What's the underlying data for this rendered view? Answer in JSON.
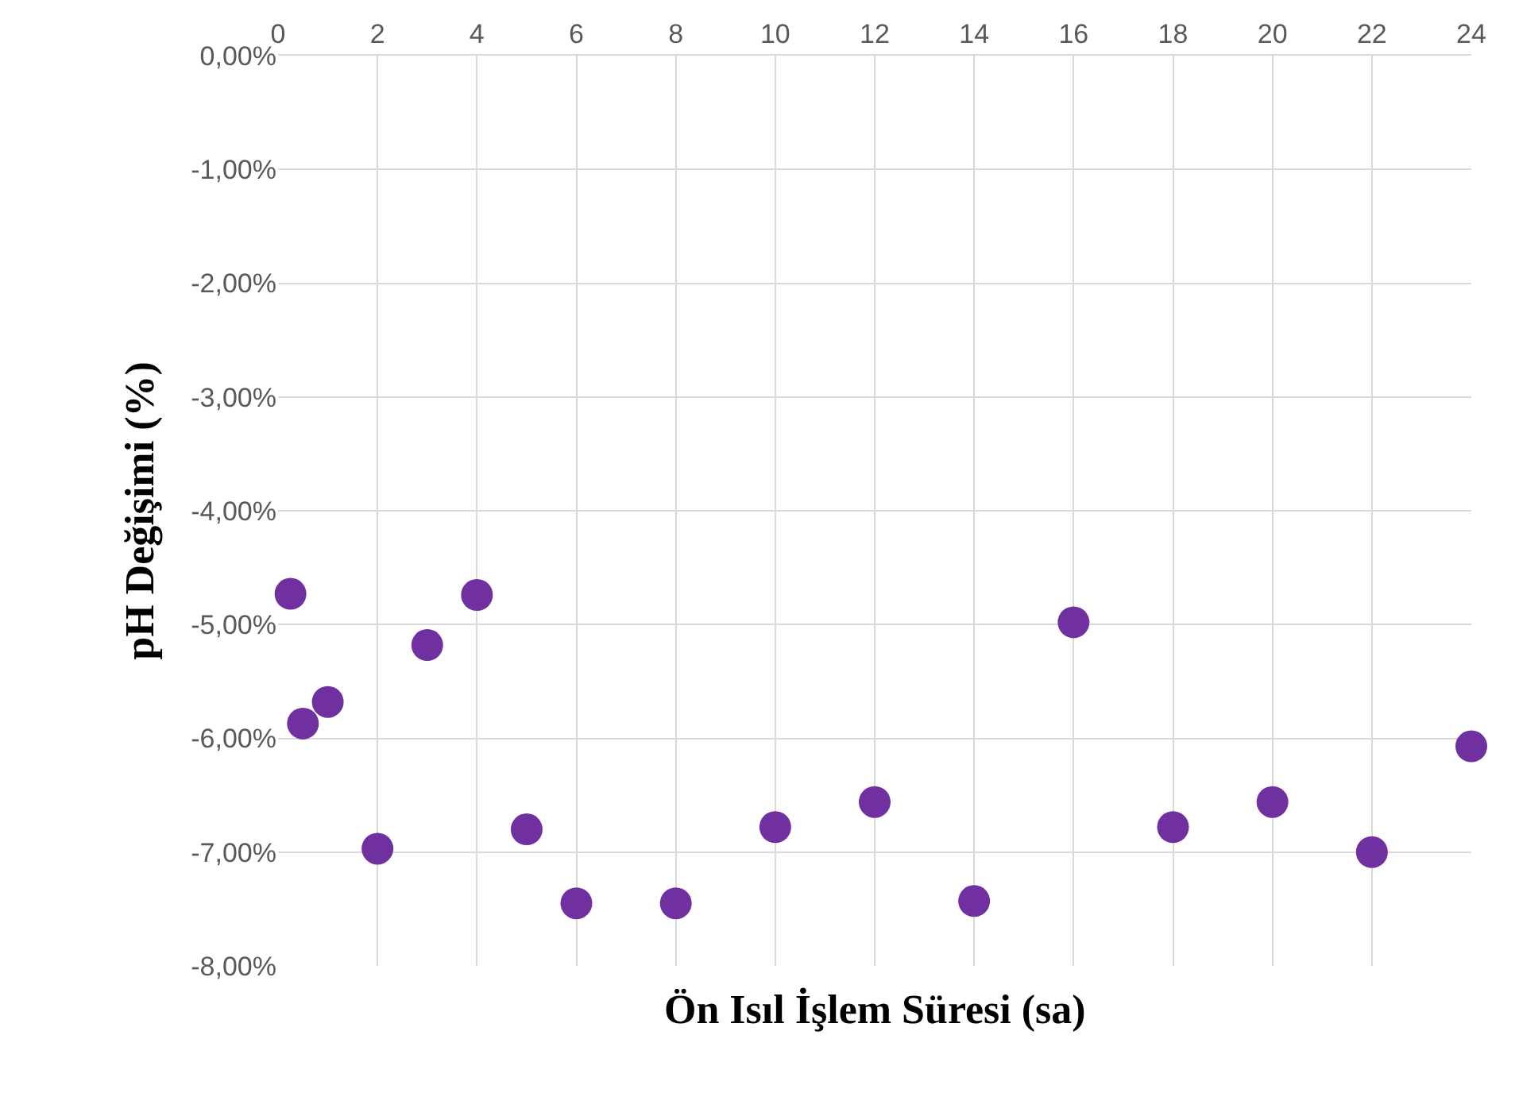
{
  "chart_data": {
    "type": "scatter",
    "xlabel": "Ön Isıl İşlem Süresi (sa)",
    "ylabel": "pH Değişimi (%)",
    "x": [
      0.25,
      0.5,
      1,
      2,
      3,
      4,
      5,
      6,
      8,
      10,
      12,
      14,
      16,
      18,
      20,
      22,
      24
    ],
    "series": [
      {
        "color": "#7030a0",
        "values": [
          -4.73,
          -5.87,
          -5.68,
          -6.97,
          -5.18,
          -4.74,
          -6.8,
          -7.45,
          -7.45,
          -6.78,
          -6.56,
          -7.43,
          -4.98,
          -6.78,
          -6.56,
          -7.0,
          -6.07
        ]
      }
    ],
    "xlim": [
      0,
      24
    ],
    "xticks": [
      0,
      2,
      4,
      6,
      8,
      10,
      12,
      14,
      16,
      18,
      20,
      22,
      24
    ],
    "ylim": [
      -8,
      0
    ],
    "yticks": [
      {
        "value": 0,
        "label": "0,00%"
      },
      {
        "value": -1,
        "label": "-1,00%"
      },
      {
        "value": -2,
        "label": "-2,00%"
      },
      {
        "value": -3,
        "label": "-3,00%"
      },
      {
        "value": -4,
        "label": "-4,00%"
      },
      {
        "value": -5,
        "label": "-5,00%"
      },
      {
        "value": -6,
        "label": "-6,00%"
      },
      {
        "value": -7,
        "label": "-7,00%"
      },
      {
        "value": -8,
        "label": "-8,00%"
      }
    ],
    "grid": true,
    "marker": "circle"
  }
}
